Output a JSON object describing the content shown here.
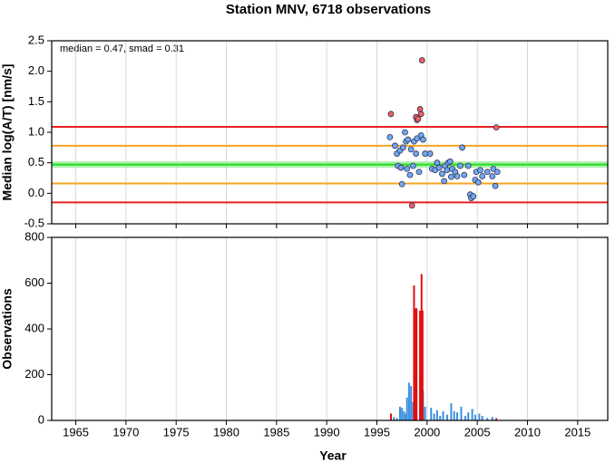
{
  "chart_data": [
    {
      "type": "scatter",
      "title": "Station MNV, 6718 observations",
      "ylabel": "Median log(A/T) [nm/s]",
      "annotation": "median = 0.47, smad = 0.31",
      "xlim": [
        1962.6,
        2018
      ],
      "xticks": [
        1965,
        1970,
        1975,
        1980,
        1985,
        1990,
        1995,
        2000,
        2005,
        2010,
        2015
      ],
      "ylim": [
        -0.5,
        2.5
      ],
      "yticks": [
        -0.5,
        {
          "value": 0,
          "label": "0.0"
        },
        0.5,
        {
          "value": 1,
          "label": "1.0"
        },
        1.5,
        {
          "value": 2,
          "label": "2.0"
        },
        2.5
      ],
      "grid": true,
      "reference_lines": [
        {
          "value": 1.09,
          "color": "#e82020"
        },
        {
          "value": 0.78,
          "color": "#f5a623"
        },
        {
          "value": 0.47,
          "color": "#22dd22"
        },
        {
          "value": 0.16,
          "color": "#f5a623"
        },
        {
          "value": -0.15,
          "color": "#e82020"
        }
      ],
      "series": [
        {
          "color": "#6fa8f0",
          "x": [
            1996.3,
            1996.8,
            1997.0,
            1997.1,
            1997.3,
            1997.4,
            1997.5,
            1997.6,
            1997.8,
            1997.9,
            1998.0,
            1998.1,
            1998.3,
            1998.4,
            1998.6,
            1998.7,
            1998.9,
            1999.0,
            1999.2,
            1999.4,
            1999.6,
            1999.8,
            2000.3,
            2000.5,
            2000.8,
            2001.0,
            2001.2,
            2001.5,
            2001.7,
            2001.8,
            2002.0,
            2002.1,
            2002.3,
            2002.4,
            2002.5,
            2002.8,
            2003.0,
            2003.3,
            2003.5,
            2003.7,
            2004.1,
            2004.3,
            2004.4,
            2004.6,
            2004.8,
            2004.9,
            2005.1,
            2005.3,
            2005.5,
            2006.0,
            2006.5,
            2006.6,
            2006.8,
            2007.0
          ],
          "values": [
            0.92,
            0.78,
            0.65,
            0.45,
            0.7,
            0.42,
            0.15,
            0.75,
            1.0,
            0.85,
            0.4,
            0.88,
            0.3,
            0.72,
            0.45,
            0.85,
            0.65,
            0.9,
            0.35,
            0.95,
            0.88,
            0.65,
            0.65,
            0.4,
            0.38,
            0.5,
            0.42,
            0.32,
            0.2,
            0.45,
            0.38,
            0.5,
            0.52,
            0.27,
            0.4,
            0.35,
            0.28,
            0.45,
            0.75,
            0.3,
            0.45,
            -0.02,
            -0.08,
            -0.05,
            0.22,
            0.35,
            0.18,
            0.38,
            0.28,
            0.35,
            0.28,
            0.4,
            0.12,
            0.35
          ]
        },
        {
          "color": "#f06060",
          "x": [
            1996.4,
            1998.5,
            1998.9,
            1999.0,
            1999.1,
            1999.3,
            1999.4,
            1999.5,
            2006.9
          ],
          "values": [
            1.3,
            -0.2,
            1.25,
            1.2,
            1.22,
            1.38,
            1.3,
            2.18,
            1.08
          ]
        }
      ]
    },
    {
      "type": "bar",
      "ylabel": "Observations",
      "xlabel": "Year",
      "xlim": [
        1962.6,
        2018
      ],
      "xticks": [
        1965,
        1970,
        1975,
        1980,
        1985,
        1990,
        1995,
        2000,
        2005,
        2010,
        2015
      ],
      "ylim": [
        0,
        800
      ],
      "yticks": [
        0,
        200,
        400,
        600,
        800
      ],
      "grid": true,
      "series": [
        {
          "color": "#3a8fe0",
          "x": [
            1996.7,
            1997.0,
            1997.3,
            1997.5,
            1997.7,
            1997.9,
            1998.0,
            1998.2,
            1998.4,
            1998.6,
            1998.9,
            1999.3,
            1999.6,
            1999.8,
            2000.4,
            2000.7,
            2001.0,
            2001.3,
            2001.6,
            2002.0,
            2002.4,
            2002.7,
            2003.0,
            2003.4,
            2003.8,
            2004.1,
            2004.5,
            2004.8,
            2005.2,
            2005.5,
            2006.0,
            2006.5,
            2006.9
          ],
          "values": [
            15,
            10,
            60,
            55,
            40,
            30,
            100,
            165,
            150,
            80,
            240,
            200,
            130,
            60,
            55,
            30,
            45,
            20,
            40,
            25,
            75,
            40,
            35,
            60,
            20,
            35,
            50,
            25,
            30,
            20,
            10,
            15,
            5
          ]
        },
        {
          "color": "#e01010",
          "x": [
            1996.4,
            1998.7,
            1998.85,
            1998.95,
            1999.3,
            1999.45,
            1999.55,
            2006.9
          ],
          "values": [
            30,
            590,
            490,
            490,
            480,
            640,
            480,
            10
          ]
        }
      ]
    }
  ]
}
